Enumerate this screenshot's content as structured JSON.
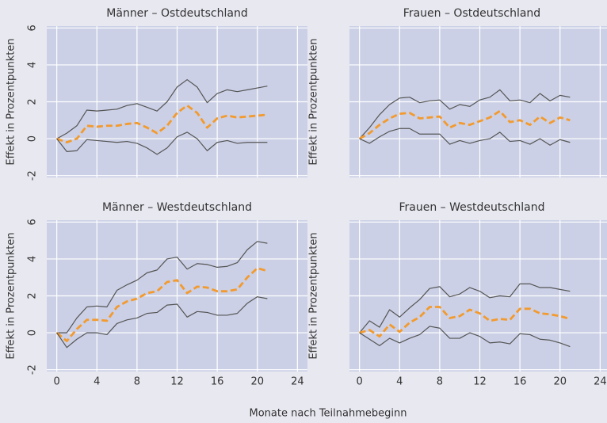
{
  "chart_data": [
    {
      "type": "line",
      "title": "Männer – Ostdeutschland",
      "ylabel": "Effekt in Prozentpunkten",
      "x": [
        0,
        1,
        2,
        3,
        4,
        5,
        6,
        7,
        8,
        9,
        10,
        11,
        12,
        13,
        14,
        15,
        16,
        17,
        18,
        19,
        20,
        21
      ],
      "series": [
        {
          "color": "#555555",
          "values": [
            0,
            0.3,
            0.7,
            1.55,
            1.5,
            1.55,
            1.6,
            1.8,
            1.9,
            1.7,
            1.5,
            2.0,
            2.8,
            3.2,
            2.8,
            1.95,
            2.45,
            2.65,
            2.55,
            2.65,
            2.75,
            2.85
          ]
        },
        {
          "color": "#f39a2e",
          "dashed": true,
          "values": [
            0,
            -0.2,
            0,
            0.7,
            0.65,
            0.7,
            0.7,
            0.8,
            0.85,
            0.6,
            0.3,
            0.7,
            1.4,
            1.8,
            1.4,
            0.6,
            1.1,
            1.25,
            1.15,
            1.2,
            1.25,
            1.3
          ]
        },
        {
          "color": "#555555",
          "values": [
            0,
            -0.7,
            -0.65,
            -0.05,
            -0.1,
            -0.15,
            -0.2,
            -0.15,
            -0.25,
            -0.5,
            -0.85,
            -0.5,
            0.1,
            0.35,
            0.0,
            -0.65,
            -0.2,
            -0.1,
            -0.25,
            -0.2,
            -0.2,
            -0.2
          ]
        }
      ],
      "xlim": [
        -1,
        25
      ],
      "xticks": [
        0,
        4,
        8,
        12,
        16,
        20,
        24
      ],
      "ylim": [
        -2.1,
        6.1
      ],
      "yticks": [
        -2,
        0,
        2,
        4,
        6
      ],
      "grid": true,
      "show_xtick_labels": false,
      "show_ytick_labels": true
    },
    {
      "type": "line",
      "title": "Frauen – Ostdeutschland",
      "ylabel": "Effekt in Prozentpunkten",
      "x": [
        0,
        1,
        2,
        3,
        4,
        5,
        6,
        7,
        8,
        9,
        10,
        11,
        12,
        13,
        14,
        15,
        16,
        17,
        18,
        19,
        20,
        21
      ],
      "series": [
        {
          "color": "#555555",
          "values": [
            0,
            0.6,
            1.3,
            1.85,
            2.2,
            2.25,
            1.95,
            2.05,
            2.1,
            1.6,
            1.85,
            1.75,
            2.1,
            2.25,
            2.65,
            2.05,
            2.1,
            1.95,
            2.45,
            2.05,
            2.35,
            2.25
          ]
        },
        {
          "color": "#f39a2e",
          "dashed": true,
          "values": [
            0,
            0.3,
            0.75,
            1.1,
            1.35,
            1.4,
            1.1,
            1.15,
            1.2,
            0.6,
            0.85,
            0.75,
            0.95,
            1.15,
            1.5,
            0.9,
            1.0,
            0.75,
            1.2,
            0.85,
            1.15,
            1.0
          ]
        },
        {
          "color": "#555555",
          "values": [
            0,
            -0.25,
            0.1,
            0.4,
            0.55,
            0.55,
            0.25,
            0.25,
            0.25,
            -0.3,
            -0.1,
            -0.25,
            -0.1,
            0.0,
            0.35,
            -0.15,
            -0.1,
            -0.3,
            0.0,
            -0.35,
            -0.05,
            -0.2
          ]
        }
      ],
      "xlim": [
        -1,
        25
      ],
      "xticks": [
        0,
        4,
        8,
        12,
        16,
        20,
        24
      ],
      "ylim": [
        -2.1,
        6.1
      ],
      "yticks": [
        -2,
        0,
        2,
        4,
        6
      ],
      "grid": true,
      "show_xtick_labels": false,
      "show_ytick_labels": false
    },
    {
      "type": "line",
      "title": "Männer – Westdeutschland",
      "ylabel": "Effekt in Prozentpunkten",
      "x": [
        0,
        1,
        2,
        3,
        4,
        5,
        6,
        7,
        8,
        9,
        10,
        11,
        12,
        13,
        14,
        15,
        16,
        17,
        18,
        19,
        20,
        21
      ],
      "series": [
        {
          "color": "#555555",
          "values": [
            0,
            0,
            0.8,
            1.4,
            1.45,
            1.4,
            2.3,
            2.6,
            2.85,
            3.25,
            3.4,
            4.0,
            4.1,
            3.45,
            3.75,
            3.7,
            3.55,
            3.6,
            3.8,
            4.5,
            4.95,
            4.85
          ]
        },
        {
          "color": "#f39a2e",
          "dashed": true,
          "values": [
            0,
            -0.45,
            0.2,
            0.7,
            0.7,
            0.65,
            1.4,
            1.7,
            1.85,
            2.15,
            2.25,
            2.75,
            2.85,
            2.15,
            2.5,
            2.45,
            2.25,
            2.25,
            2.35,
            3.0,
            3.5,
            3.35
          ]
        },
        {
          "color": "#555555",
          "values": [
            0,
            -0.8,
            -0.35,
            0.0,
            0.0,
            -0.1,
            0.5,
            0.7,
            0.8,
            1.05,
            1.1,
            1.5,
            1.55,
            0.85,
            1.15,
            1.1,
            0.95,
            0.95,
            1.05,
            1.6,
            1.95,
            1.85
          ]
        }
      ],
      "xlim": [
        -1,
        25
      ],
      "xticks": [
        0,
        4,
        8,
        12,
        16,
        20,
        24
      ],
      "ylim": [
        -2.1,
        6.1
      ],
      "yticks": [
        -2,
        0,
        2,
        4,
        6
      ],
      "grid": true,
      "show_xtick_labels": true,
      "show_ytick_labels": true
    },
    {
      "type": "line",
      "title": "Frauen – Westdeutschland",
      "ylabel": "Effekt in Prozentpunkten",
      "x": [
        0,
        1,
        2,
        3,
        4,
        5,
        6,
        7,
        8,
        9,
        10,
        11,
        12,
        13,
        14,
        15,
        16,
        17,
        18,
        19,
        20,
        21
      ],
      "series": [
        {
          "color": "#555555",
          "values": [
            0,
            0.65,
            0.3,
            1.25,
            0.85,
            1.35,
            1.8,
            2.4,
            2.5,
            1.95,
            2.1,
            2.45,
            2.25,
            1.9,
            2.0,
            1.95,
            2.65,
            2.65,
            2.45,
            2.45,
            2.35,
            2.25
          ]
        },
        {
          "color": "#f39a2e",
          "dashed": true,
          "values": [
            0,
            0.15,
            -0.2,
            0.45,
            0.05,
            0.55,
            0.85,
            1.4,
            1.4,
            0.8,
            0.9,
            1.25,
            1.05,
            0.65,
            0.75,
            0.7,
            1.3,
            1.3,
            1.05,
            1.0,
            0.9,
            0.75
          ]
        },
        {
          "color": "#555555",
          "values": [
            0,
            -0.35,
            -0.7,
            -0.3,
            -0.55,
            -0.3,
            -0.1,
            0.35,
            0.25,
            -0.3,
            -0.3,
            0.0,
            -0.2,
            -0.55,
            -0.5,
            -0.6,
            -0.05,
            -0.1,
            -0.35,
            -0.4,
            -0.55,
            -0.75
          ]
        }
      ],
      "xlim": [
        -1,
        25
      ],
      "xticks": [
        0,
        4,
        8,
        12,
        16,
        20,
        24
      ],
      "ylim": [
        -2.1,
        6.1
      ],
      "yticks": [
        -2,
        0,
        2,
        4,
        6
      ],
      "grid": true,
      "show_xtick_labels": true,
      "show_ytick_labels": false
    }
  ],
  "xlabel": "Monate nach Teilnahmebeginn"
}
